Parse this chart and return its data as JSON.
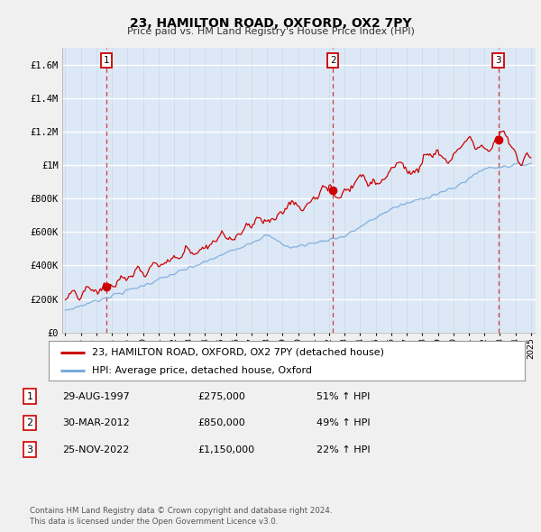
{
  "title": "23, HAMILTON ROAD, OXFORD, OX2 7PY",
  "subtitle": "Price paid vs. HM Land Registry's House Price Index (HPI)",
  "xlim": [
    1994.8,
    2025.3
  ],
  "ylim": [
    0,
    1700000
  ],
  "yticks": [
    0,
    200000,
    400000,
    600000,
    800000,
    1000000,
    1200000,
    1400000,
    1600000
  ],
  "ytick_labels": [
    "£0",
    "£200K",
    "£400K",
    "£600K",
    "£800K",
    "£1M",
    "£1.2M",
    "£1.4M",
    "£1.6M"
  ],
  "xticks": [
    1995,
    1996,
    1997,
    1998,
    1999,
    2000,
    2001,
    2002,
    2003,
    2004,
    2005,
    2006,
    2007,
    2008,
    2009,
    2010,
    2011,
    2012,
    2013,
    2014,
    2015,
    2016,
    2017,
    2018,
    2019,
    2020,
    2021,
    2022,
    2023,
    2024,
    2025
  ],
  "sale_dates": [
    1997.66,
    2012.24,
    2022.9
  ],
  "sale_prices": [
    275000,
    850000,
    1150000
  ],
  "sale_labels": [
    "1",
    "2",
    "3"
  ],
  "red_color": "#cc0000",
  "blue_color": "#7aaadd",
  "bg_color": "#dce8f5",
  "fig_bg": "#f0f0f0",
  "legend_label_red": "23, HAMILTON ROAD, OXFORD, OX2 7PY (detached house)",
  "legend_label_blue": "HPI: Average price, detached house, Oxford",
  "table_data": [
    [
      "1",
      "29-AUG-1997",
      "£275,000",
      "51% ↑ HPI"
    ],
    [
      "2",
      "30-MAR-2012",
      "£850,000",
      "49% ↑ HPI"
    ],
    [
      "3",
      "25-NOV-2022",
      "£1,150,000",
      "22% ↑ HPI"
    ]
  ],
  "footnote": "Contains HM Land Registry data © Crown copyright and database right 2024.\nThis data is licensed under the Open Government Licence v3.0."
}
